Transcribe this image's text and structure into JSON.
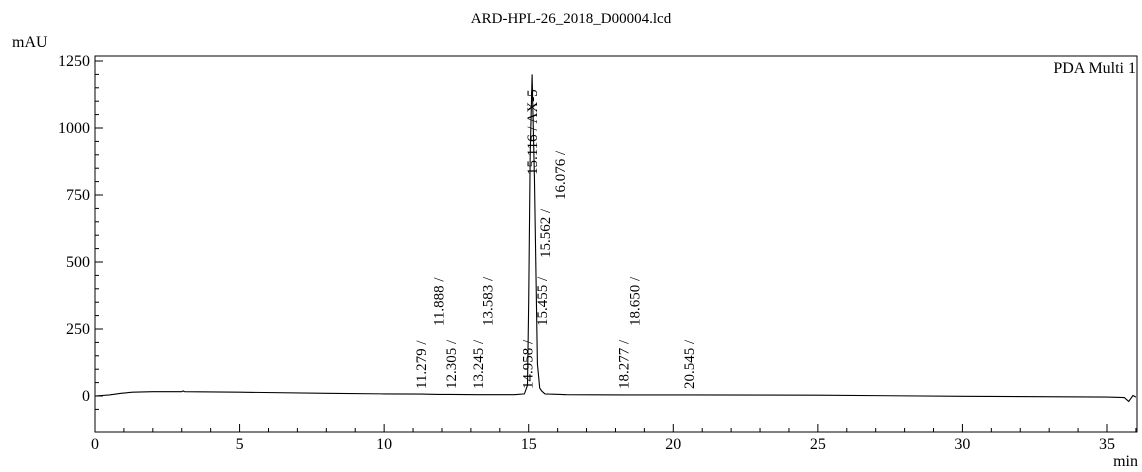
{
  "chart_data": {
    "type": "line",
    "title": "ARD-HPL-26_2018_D00004.lcd",
    "ylabel": "mAU",
    "xlabel": "min",
    "legend": "PDA Multi 1",
    "xlim": [
      0,
      36
    ],
    "ylim": [
      -75,
      1300
    ],
    "x_ticks": [
      0,
      5,
      10,
      15,
      20,
      25,
      30,
      35
    ],
    "y_ticks": [
      0,
      250,
      500,
      750,
      1000,
      1250
    ],
    "series": [
      {
        "x": [
          0,
          0.5,
          0.9,
          1.3,
          2.0,
          3.0,
          3.05,
          3.1,
          5,
          8,
          10,
          11.279,
          11.888,
          12.305,
          13.245,
          13.583,
          14.5,
          14.85,
          14.958,
          15.0,
          15.05,
          15.116,
          15.2,
          15.3,
          15.38,
          15.455,
          15.562,
          15.7,
          16.076,
          16.3,
          18.277,
          18.65,
          20.545,
          25,
          30,
          35,
          35.6,
          35.75,
          35.9,
          36
        ],
        "y": [
          0,
          4,
          10,
          14,
          16,
          16,
          19,
          16,
          14,
          10,
          8,
          7,
          6,
          6,
          5,
          5,
          5,
          8,
          40,
          350,
          900,
          1200,
          800,
          120,
          30,
          18,
          8,
          7,
          6,
          5,
          4,
          4,
          4,
          3,
          -1,
          -4,
          -6,
          -20,
          2,
          -4
        ]
      }
    ],
    "peaks": [
      {
        "rt": 11.279,
        "label": "11.279 /"
      },
      {
        "rt": 11.888,
        "label": "11.888 /"
      },
      {
        "rt": 12.305,
        "label": "12.305 /"
      },
      {
        "rt": 13.245,
        "label": "13.245 /"
      },
      {
        "rt": 13.583,
        "label": "13.583 /"
      },
      {
        "rt": 14.958,
        "label": "14.958 /"
      },
      {
        "rt": 15.116,
        "label": "15.116 / AX-5"
      },
      {
        "rt": 15.455,
        "label": "15.455 /"
      },
      {
        "rt": 15.562,
        "label": "15.562 /"
      },
      {
        "rt": 16.076,
        "label": "16.076 /"
      },
      {
        "rt": 18.277,
        "label": "18.277 /"
      },
      {
        "rt": 18.65,
        "label": "18.650 /"
      },
      {
        "rt": 20.545,
        "label": "20.545 /"
      }
    ],
    "grid": false
  }
}
